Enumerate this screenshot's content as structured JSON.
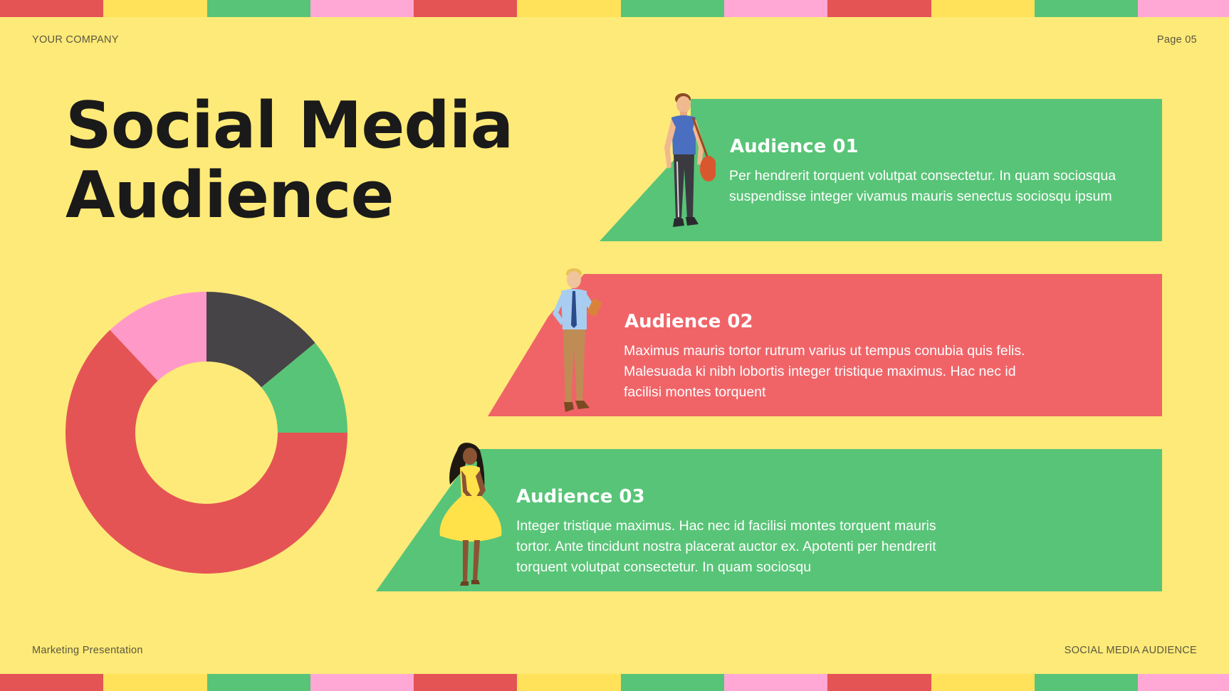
{
  "header": {
    "company": "YOUR COMPANY",
    "page": "Page 05"
  },
  "footer": {
    "left": "Marketing Presentation",
    "right": "SOCIAL MEDIA AUDIENCE"
  },
  "title": {
    "line1": "Social Media",
    "line2": "Audience"
  },
  "stripe_colors": [
    "#E55454",
    "#FFE15A",
    "#58C477",
    "#FFA8D5"
  ],
  "donut": {
    "segments": [
      {
        "value": 14,
        "color": "#474448"
      },
      {
        "value": 11,
        "color": "#58C477"
      },
      {
        "value": 63,
        "color": "#E55454"
      },
      {
        "value": 12,
        "color": "#FF99C8"
      }
    ]
  },
  "audiences": [
    {
      "title": "Audience 01",
      "text": "Per hendrerit torquent volutpat consectetur. In quam sociosqua suspendisse integer vivamus mauris senectus sociosqu ipsum",
      "color": "#58C477",
      "figure": "man-with-bag-icon"
    },
    {
      "title": "Audience 02",
      "text": "Maximus mauris tortor rutrum varius ut tempus conubia quis felis. Malesuada ki nibh lobortis integer tristique maximus. Hac nec id facilisi montes torquent",
      "color": "#F06468",
      "figure": "man-with-tablet-icon"
    },
    {
      "title": "Audience 03",
      "text": "Integer tristique maximus. Hac nec id facilisi montes torquent mauris tortor. Ante tincidunt nostra placerat auctor ex. Apotenti per hendrerit torquent volutpat consectetur. In quam sociosqu",
      "color": "#58C477",
      "figure": "woman-in-yellow-dress-icon"
    }
  ]
}
